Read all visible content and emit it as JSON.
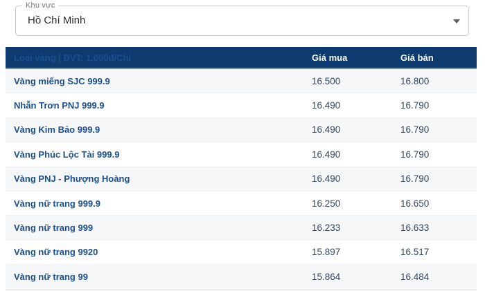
{
  "region_selector": {
    "label": "Khu vực",
    "value": "Hồ Chí Minh",
    "caret_icon": "chevron-down"
  },
  "table": {
    "header": {
      "type_col": "Loại vàng | ĐVT: 1.000đ/Chỉ",
      "buy_col": "Giá mua",
      "sell_col": "Giá bán"
    },
    "unit": "1.000đ/Chỉ",
    "rows": [
      {
        "name": "Vàng miếng SJC 999.9",
        "buy": "16.500",
        "sell": "16.800"
      },
      {
        "name": "Nhẫn Trơn PNJ 999.9",
        "buy": "16.490",
        "sell": "16.790"
      },
      {
        "name": "Vàng Kim Bảo 999.9",
        "buy": "16.490",
        "sell": "16.790"
      },
      {
        "name": "Vàng Phúc Lộc Tài 999.9",
        "buy": "16.490",
        "sell": "16.790"
      },
      {
        "name": "Vàng PNJ - Phượng Hoàng",
        "buy": "16.490",
        "sell": "16.790"
      },
      {
        "name": "Vàng nữ trang 999.9",
        "buy": "16.250",
        "sell": "16.650"
      },
      {
        "name": "Vàng nữ trang 999",
        "buy": "16.233",
        "sell": "16.633"
      },
      {
        "name": "Vàng nữ trang 9920",
        "buy": "15.897",
        "sell": "16.517"
      },
      {
        "name": "Vàng nữ trang 99",
        "buy": "15.864",
        "sell": "16.484"
      }
    ]
  },
  "colors": {
    "header_bg": "#0d3b70",
    "header_underline": "#7390aa",
    "row_label_blue": "#1a4f8f",
    "value_text": "#33455c",
    "stripe_bg": "#f6f7f8"
  }
}
